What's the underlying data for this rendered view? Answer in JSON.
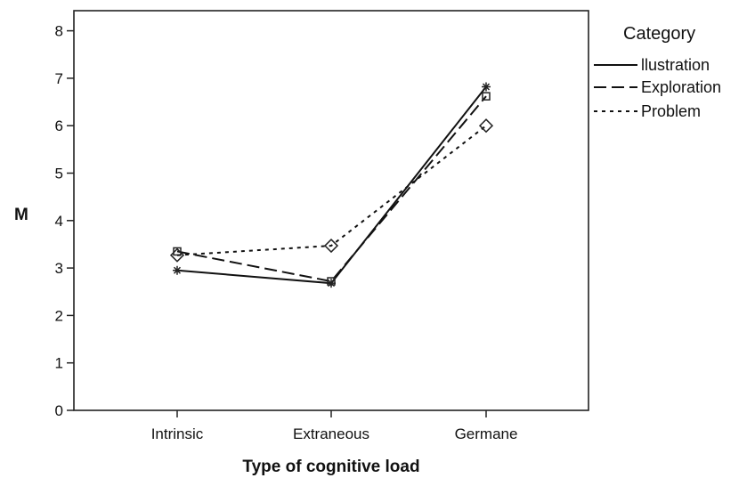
{
  "chart_data": {
    "type": "line",
    "title": "",
    "xlabel": "Type of cognitive load",
    "ylabel": "M",
    "categories": [
      "Intrinsic",
      "Extraneous",
      "Germane"
    ],
    "ylim": [
      0,
      8
    ],
    "yticks": [
      "0",
      "1",
      "2",
      "3",
      "4",
      "5",
      "6",
      "7",
      "8"
    ],
    "grid": false,
    "legend": {
      "title": "Category",
      "position": "top-right, outside plot"
    },
    "series": [
      {
        "name": "llustration",
        "values": [
          2.95,
          2.68,
          6.82
        ],
        "line_style": "solid",
        "marker": "star"
      },
      {
        "name": "Exploration",
        "values": [
          3.35,
          2.72,
          6.62
        ],
        "line_style": "long-dash",
        "marker": "square"
      },
      {
        "name": "Problem",
        "values": [
          3.27,
          3.47,
          6.0
        ],
        "line_style": "dotted",
        "marker": "diamond"
      }
    ]
  }
}
